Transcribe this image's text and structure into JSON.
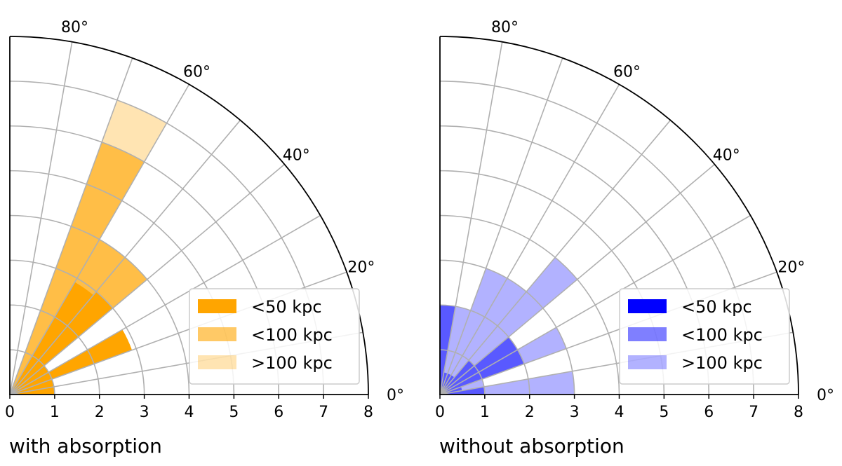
{
  "chart_data": [
    {
      "type": "polar-bar",
      "title": "with absorption",
      "theta_unit": "deg",
      "theta_range": [
        0,
        90
      ],
      "r_range": [
        0,
        8
      ],
      "r_ticks": [
        "0",
        "1",
        "2",
        "3",
        "4",
        "5",
        "6",
        "7",
        "8"
      ],
      "theta_ticks": [
        "0°",
        "20°",
        "40°",
        "60°",
        "80°"
      ],
      "bin_width_deg": 10,
      "grid": true,
      "legend_position": "lower-right",
      "stacking": "overlaid",
      "series": [
        {
          "name": "<50 kpc",
          "color": "#ffa500",
          "opacity": 1.0,
          "values": [
            1,
            1,
            2.9,
            1,
            3,
            2.9,
            0,
            0,
            0
          ]
        },
        {
          "name": "<100 kpc",
          "color": "#ffa500",
          "opacity": 0.6,
          "values": [
            1,
            1,
            2.9,
            1,
            4,
            4,
            6,
            0,
            0
          ]
        },
        {
          "name": ">100 kpc",
          "color": "#ffa500",
          "opacity": 0.3,
          "values": [
            1,
            1,
            2.9,
            1,
            4,
            4,
            7,
            0,
            0
          ]
        }
      ]
    },
    {
      "type": "polar-bar",
      "title": "without absorption",
      "theta_unit": "deg",
      "theta_range": [
        0,
        90
      ],
      "r_range": [
        0,
        8
      ],
      "r_ticks": [
        "0",
        "1",
        "2",
        "3",
        "4",
        "5",
        "6",
        "7",
        "8"
      ],
      "theta_ticks": [
        "0°",
        "20°",
        "40°",
        "60°",
        "80°"
      ],
      "bin_width_deg": 10,
      "grid": true,
      "legend_position": "lower-right",
      "stacking": "overlaid",
      "series": [
        {
          "name": "<50 kpc",
          "color": "#0000ff",
          "opacity": 1.0,
          "values": [
            0,
            0,
            0,
            0,
            0,
            0,
            0,
            0,
            0
          ]
        },
        {
          "name": "<100 kpc",
          "color": "#0000ff",
          "opacity": 0.5,
          "values": [
            1,
            0.5,
            2,
            2,
            1,
            0.5,
            0.5,
            0.5,
            2
          ]
        },
        {
          "name": ">100 kpc",
          "color": "#0000ff",
          "opacity": 0.3,
          "values": [
            3,
            1,
            3,
            2,
            4,
            3,
            3,
            2,
            2
          ]
        }
      ]
    }
  ]
}
